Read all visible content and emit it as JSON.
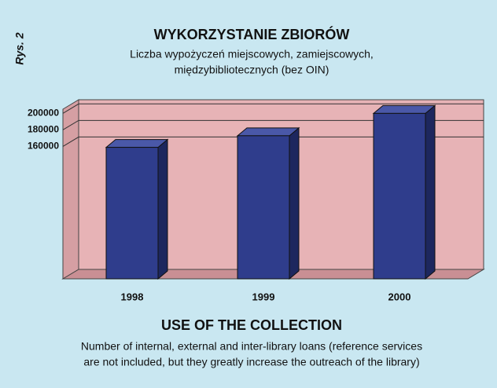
{
  "chart_data": {
    "type": "bar",
    "figure_label": "Rys. 2",
    "title": "WYKORZYSTANIE ZBIORÓW",
    "subtitle": [
      "Liczba wypożyczeń miejscowych, zamiejscowych,",
      "międzybibliotecznych (bez OIN)"
    ],
    "categories": [
      "1998",
      "1999",
      "2000"
    ],
    "values": [
      157000,
      171000,
      198000
    ],
    "color": "#2f3d8c",
    "ylim": [
      0,
      205000
    ],
    "yticks": [
      160000,
      180000,
      200000
    ],
    "grid": true,
    "title_en": "USE OF THE COLLECTION",
    "description_en": [
      "Number of internal, external and inter-library loans (reference services",
      "are not included, but they greatly increase the outreach of the library)"
    ]
  }
}
